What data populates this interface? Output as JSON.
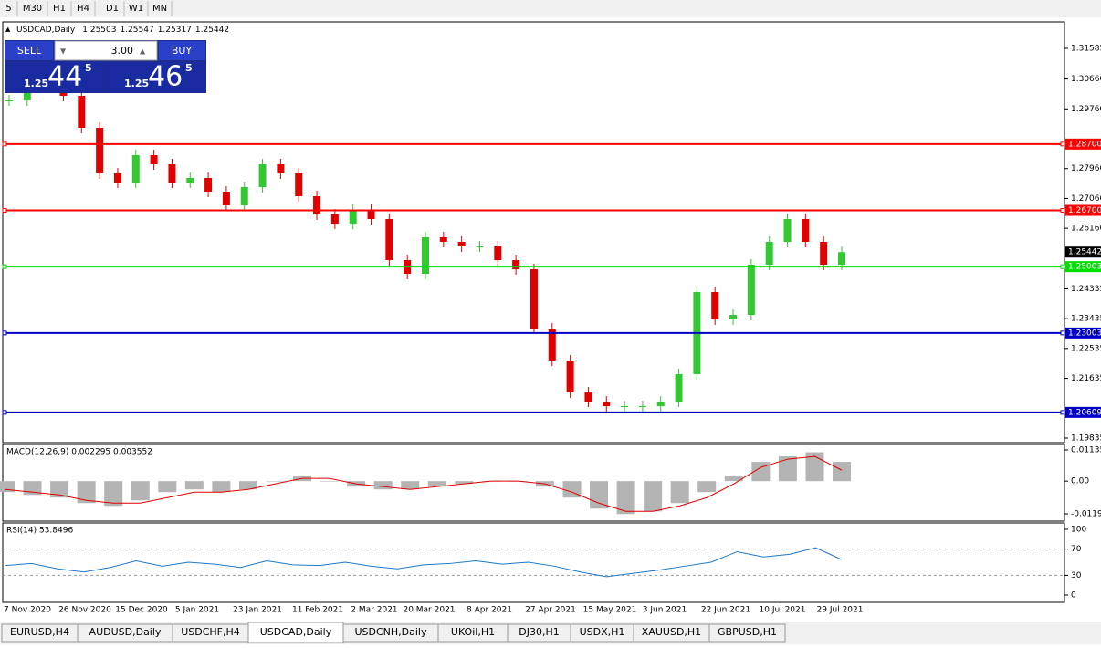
{
  "toolbar": {
    "timeframes": [
      "5",
      "M30",
      "H1",
      "H4",
      "D1",
      "W1",
      "MN"
    ]
  },
  "symbol_info": {
    "symbol": "USDCAD,Daily",
    "open": 1.25503,
    "high": 1.25547,
    "low": 1.25317,
    "close": 1.25442
  },
  "trade_panel": {
    "sell": "SELL",
    "buy": "BUY",
    "volume": "3.00",
    "sell_price": {
      "prefix": "1.25",
      "big": "44",
      "small": "5"
    },
    "buy_price": {
      "prefix": "1.25",
      "big": "46",
      "small": "5"
    }
  },
  "chart": {
    "ylim": [
      1.19697,
      1.32383
    ],
    "yticks": [
      1.31585,
      {
        "value": 1.3066,
        "label": "1.30660"
      },
      {
        "value": 1.2976,
        "label": "1.29760"
      },
      {
        "value": 1.2796,
        "label": "1.27960"
      },
      {
        "value": 1.2706,
        "label": "1.27060"
      },
      {
        "value": 1.2616,
        "label": "1.26160"
      },
      1.24335,
      1.23435,
      1.22535,
      1.21635,
      1.19835
    ],
    "levels": [
      {
        "value": 1.287,
        "label": "1.28700",
        "color": "#ff0000"
      },
      {
        "value": 1.267,
        "label": "1.26700",
        "color": "#ff0000"
      },
      {
        "value": 1.25003,
        "label": "1.25003",
        "color": "#00e000"
      },
      {
        "value": 1.23003,
        "label": "1.23003",
        "color": "#0000c8"
      },
      {
        "value": 1.20609,
        "label": "1.20609",
        "color": "#0000c8"
      }
    ],
    "current_price": 1.25442,
    "up_color": "#32c832",
    "down_color": "#e00000",
    "closes": [
      1.30016,
      1.30429,
      1.30567,
      1.30154,
      1.29191,
      1.27815,
      1.2754,
      1.28365,
      1.2809,
      1.2754,
      1.27677,
      1.27264,
      1.26852,
      1.27402,
      1.2809,
      1.27815,
      1.27127,
      1.26576,
      1.26301,
      1.26714,
      1.26439,
      1.252,
      1.24788,
      1.25888,
      1.25751,
      1.25613,
      1.25613,
      1.252,
      1.24925,
      1.23136,
      1.22173,
      1.2121,
      1.20935,
      1.20797,
      1.20797,
      1.20797,
      1.20935,
      1.2176,
      1.24237,
      1.23412,
      1.23549,
      1.25063,
      1.25751,
      1.26439,
      1.25751,
      1.25063,
      1.25442
    ],
    "x_labels": [
      "7 Nov 2020",
      "26 Nov 2020",
      "15 Dec 2020",
      "5 Jan 2021",
      "23 Jan 2021",
      "11 Feb 2021",
      "2 Mar 2021",
      "20 Mar 2021",
      "8 Apr 2021",
      "27 Apr 2021",
      "15 May 2021",
      "3 Jun 2021",
      "22 Jun 2021",
      "10 Jul 2021",
      "29 Jul 2021"
    ]
  },
  "macd": {
    "label": "MACD(12,26,9) 0.002295 0.003552",
    "ylim": [
      -0.01456,
      0.01334
    ],
    "yticks": [
      0.01135,
      {
        "value": 0,
        "label": "0.00"
      },
      {
        "value": -0.0119,
        "label": "-0.01190"
      }
    ],
    "histogram": [
      -0.004,
      -0.005,
      -0.006,
      -0.008,
      -0.009,
      -0.007,
      -0.004,
      -0.003,
      -0.004,
      -0.003,
      0.0,
      0.002,
      0.0,
      -0.002,
      -0.003,
      -0.003,
      -0.002,
      -0.001,
      0.0,
      0.0,
      -0.002,
      -0.006,
      -0.01,
      -0.012,
      -0.011,
      -0.008,
      -0.004,
      0.002,
      0.007,
      0.009,
      0.0105,
      0.007
    ],
    "signal": [
      -0.003,
      -0.004,
      -0.005,
      -0.007,
      -0.008,
      -0.008,
      -0.006,
      -0.004,
      -0.004,
      -0.003,
      -0.001,
      0.001,
      0.001,
      -0.001,
      -0.002,
      -0.003,
      -0.002,
      -0.001,
      0.0,
      0.0,
      -0.001,
      -0.004,
      -0.008,
      -0.011,
      -0.011,
      -0.009,
      -0.006,
      -0.001,
      0.005,
      0.008,
      0.009,
      0.004
    ],
    "hist_color": "#b4b4b4",
    "signal_color": "#e00000"
  },
  "rsi": {
    "label": "RSI(14) 53.8496",
    "ylim": [
      -11.1,
      109.7
    ],
    "yticks": [
      100,
      70,
      30,
      0
    ],
    "levels": [
      70,
      30
    ],
    "values": [
      45,
      48,
      40,
      35,
      42,
      52,
      44,
      50,
      47,
      42,
      52,
      46,
      45,
      50,
      44,
      40,
      46,
      48,
      52,
      47,
      50,
      44,
      35,
      28,
      33,
      38,
      44,
      50,
      66,
      58,
      62,
      72,
      54
    ],
    "color": "#1e78c8"
  },
  "tabs": [
    "EURUSD,H4",
    "AUDUSD,Daily",
    "USDCHF,H4",
    "USDCAD,Daily",
    "USDCNH,Daily",
    "UKOil,H1",
    "DJ30,H1",
    "USDX,H1",
    "XAUUSD,H1",
    "GBPUSD,H1"
  ]
}
